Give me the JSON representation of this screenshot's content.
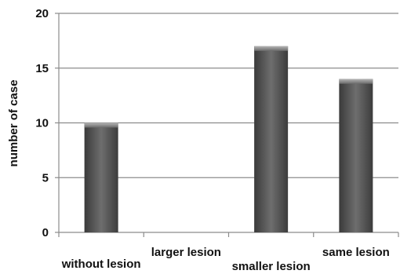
{
  "chart_data": {
    "type": "bar",
    "categories": [
      "without lesion",
      "larger lesion",
      "smaller lesion",
      "same lesion"
    ],
    "values": [
      10,
      0,
      17,
      14
    ],
    "ylabel": "number of case",
    "xlabel": "",
    "ylim": [
      0,
      20
    ],
    "yticks": [
      0,
      5,
      10,
      15,
      20
    ],
    "grid": true,
    "bar_color": "#5a5a5a"
  }
}
